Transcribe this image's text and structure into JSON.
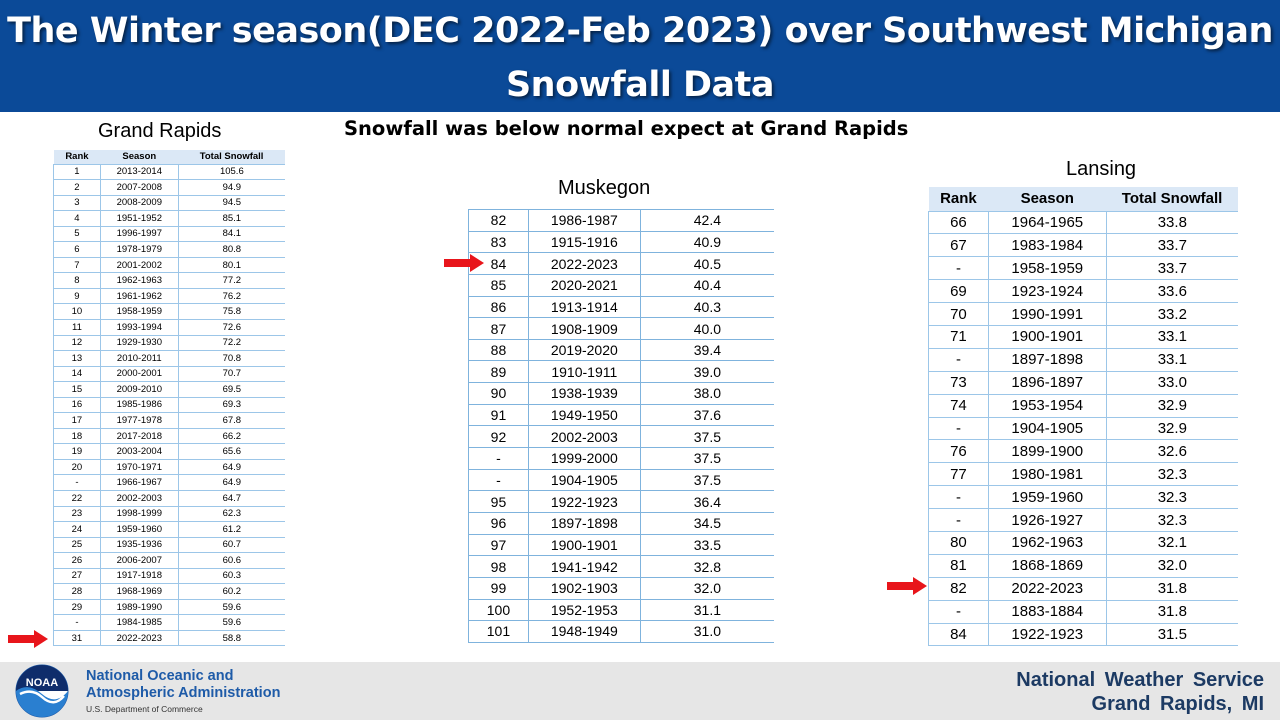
{
  "title": "The Winter season(DEC 2022-Feb 2023) over Southwest Michigan Snowfall Data",
  "subtitle": "Snowfall was below normal expect at Grand Rapids",
  "colors": {
    "banner": "#0b4a98",
    "arrow": "#e8151b",
    "header_fill": "#dbe8f6"
  },
  "grand_rapids": {
    "title": "Grand Rapids",
    "headers": [
      "Rank",
      "Season",
      "Total Snowfall"
    ],
    "rows": [
      [
        "1",
        "2013-2014",
        "105.6"
      ],
      [
        "2",
        "2007-2008",
        "94.9"
      ],
      [
        "3",
        "2008-2009",
        "94.5"
      ],
      [
        "4",
        "1951-1952",
        "85.1"
      ],
      [
        "5",
        "1996-1997",
        "84.1"
      ],
      [
        "6",
        "1978-1979",
        "80.8"
      ],
      [
        "7",
        "2001-2002",
        "80.1"
      ],
      [
        "8",
        "1962-1963",
        "77.2"
      ],
      [
        "9",
        "1961-1962",
        "76.2"
      ],
      [
        "10",
        "1958-1959",
        "75.8"
      ],
      [
        "11",
        "1993-1994",
        "72.6"
      ],
      [
        "12",
        "1929-1930",
        "72.2"
      ],
      [
        "13",
        "2010-2011",
        "70.8"
      ],
      [
        "14",
        "2000-2001",
        "70.7"
      ],
      [
        "15",
        "2009-2010",
        "69.5"
      ],
      [
        "16",
        "1985-1986",
        "69.3"
      ],
      [
        "17",
        "1977-1978",
        "67.8"
      ],
      [
        "18",
        "2017-2018",
        "66.2"
      ],
      [
        "19",
        "2003-2004",
        "65.6"
      ],
      [
        "20",
        "1970-1971",
        "64.9"
      ],
      [
        "-",
        "1966-1967",
        "64.9"
      ],
      [
        "22",
        "2002-2003",
        "64.7"
      ],
      [
        "23",
        "1998-1999",
        "62.3"
      ],
      [
        "24",
        "1959-1960",
        "61.2"
      ],
      [
        "25",
        "1935-1936",
        "60.7"
      ],
      [
        "26",
        "2006-2007",
        "60.6"
      ],
      [
        "27",
        "1917-1918",
        "60.3"
      ],
      [
        "28",
        "1968-1969",
        "60.2"
      ],
      [
        "29",
        "1989-1990",
        "59.6"
      ],
      [
        "-",
        "1984-1985",
        "59.6"
      ],
      [
        "31",
        "2022-2023",
        "58.8"
      ]
    ]
  },
  "muskegon": {
    "title": "Muskegon",
    "rows": [
      [
        "82",
        "1986-1987",
        "42.4"
      ],
      [
        "83",
        "1915-1916",
        "40.9"
      ],
      [
        "84",
        "2022-2023",
        "40.5"
      ],
      [
        "85",
        "2020-2021",
        "40.4"
      ],
      [
        "86",
        "1913-1914",
        "40.3"
      ],
      [
        "87",
        "1908-1909",
        "40.0"
      ],
      [
        "88",
        "2019-2020",
        "39.4"
      ],
      [
        "89",
        "1910-1911",
        "39.0"
      ],
      [
        "90",
        "1938-1939",
        "38.0"
      ],
      [
        "91",
        "1949-1950",
        "37.6"
      ],
      [
        "92",
        "2002-2003",
        "37.5"
      ],
      [
        "-",
        "1999-2000",
        "37.5"
      ],
      [
        "-",
        "1904-1905",
        "37.5"
      ],
      [
        "95",
        "1922-1923",
        "36.4"
      ],
      [
        "96",
        "1897-1898",
        "34.5"
      ],
      [
        "97",
        "1900-1901",
        "33.5"
      ],
      [
        "98",
        "1941-1942",
        "32.8"
      ],
      [
        "99",
        "1902-1903",
        "32.0"
      ],
      [
        "100",
        "1952-1953",
        "31.1"
      ],
      [
        "101",
        "1948-1949",
        "31.0"
      ]
    ]
  },
  "lansing": {
    "title": "Lansing",
    "headers": [
      "Rank",
      "Season",
      "Total Snowfall"
    ],
    "rows": [
      [
        "66",
        "1964-1965",
        "33.8"
      ],
      [
        "67",
        "1983-1984",
        "33.7"
      ],
      [
        "-",
        "1958-1959",
        "33.7"
      ],
      [
        "69",
        "1923-1924",
        "33.6"
      ],
      [
        "70",
        "1990-1991",
        "33.2"
      ],
      [
        "71",
        "1900-1901",
        "33.1"
      ],
      [
        "-",
        "1897-1898",
        "33.1"
      ],
      [
        "73",
        "1896-1897",
        "33.0"
      ],
      [
        "74",
        "1953-1954",
        "32.9"
      ],
      [
        "-",
        "1904-1905",
        "32.9"
      ],
      [
        "76",
        "1899-1900",
        "32.6"
      ],
      [
        "77",
        "1980-1981",
        "32.3"
      ],
      [
        "-",
        "1959-1960",
        "32.3"
      ],
      [
        "-",
        "1926-1927",
        "32.3"
      ],
      [
        "80",
        "1962-1963",
        "32.1"
      ],
      [
        "81",
        "1868-1869",
        "32.0"
      ],
      [
        "82",
        "2022-2023",
        "31.8"
      ],
      [
        "-",
        "1883-1884",
        "31.8"
      ],
      [
        "84",
        "1922-1923",
        "31.5"
      ]
    ]
  },
  "footer": {
    "noaa_logo_text": "NOAA",
    "noaa_line1": "National Oceanic and",
    "noaa_line2": "Atmospheric Administration",
    "noaa_dept": "U.S. Department of Commerce",
    "nws_name": "National Weather Service",
    "nws_location": "Grand Rapids, MI"
  }
}
